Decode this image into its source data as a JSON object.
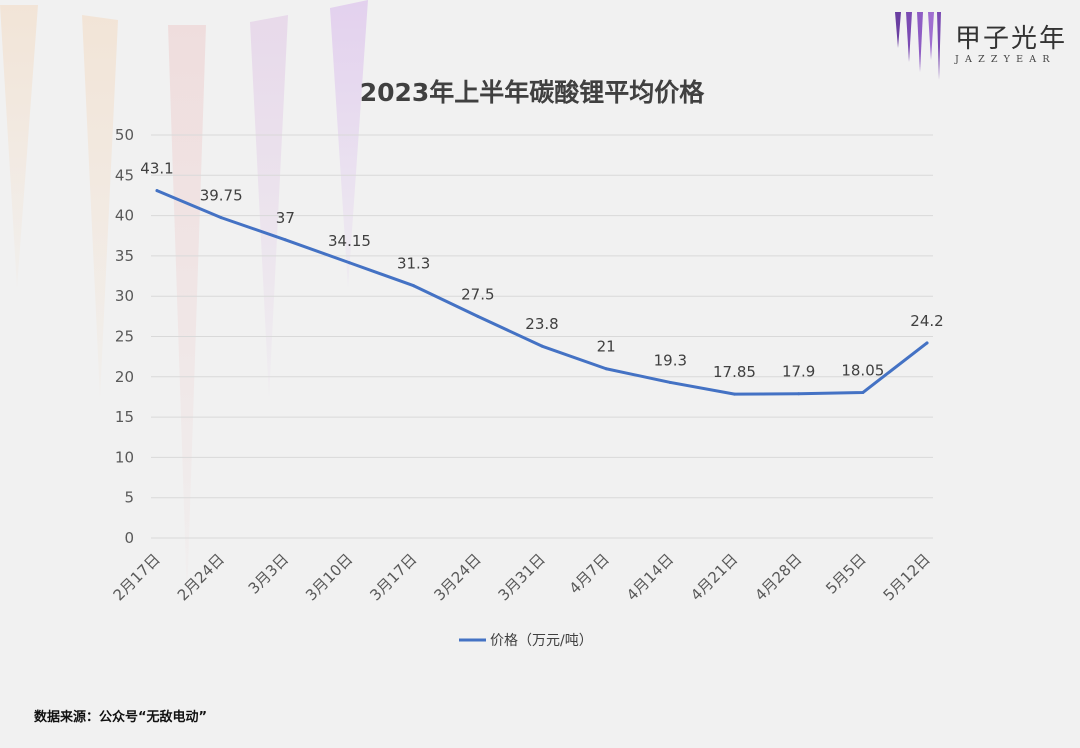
{
  "logo": {
    "cn": "甲子光年",
    "en": "JAZZYEAR",
    "bar_colors": [
      "#6a3ea1",
      "#7b4bb3",
      "#8e5cc4",
      "#a06ed0",
      "#7b4bb3"
    ]
  },
  "source_note": "数据来源：公众号“无敌电动”",
  "chart_data": {
    "type": "line",
    "title": "2023年上半年碳酸锂平均价格",
    "categories": [
      "2月17日",
      "2月24日",
      "3月3日",
      "3月10日",
      "3月17日",
      "3月24日",
      "3月31日",
      "4月7日",
      "4月14日",
      "4月21日",
      "4月28日",
      "5月5日",
      "5月12日"
    ],
    "series": [
      {
        "name": "价格（万元/吨）",
        "values": [
          43.1,
          39.75,
          37,
          34.15,
          31.3,
          27.5,
          23.8,
          21,
          19.3,
          17.85,
          17.9,
          18.05,
          24.2
        ],
        "color": "#4472c4"
      }
    ],
    "y_ticks": [
      "0",
      "5",
      "10",
      "15",
      "20",
      "25",
      "30",
      "35",
      "40",
      "45",
      "50"
    ],
    "ylim": [
      0,
      50
    ],
    "grid": true,
    "legend_position": "bottom",
    "colors": {
      "grid": "#d9d9d9",
      "axis_text": "#595959",
      "label_text": "#404040"
    }
  }
}
